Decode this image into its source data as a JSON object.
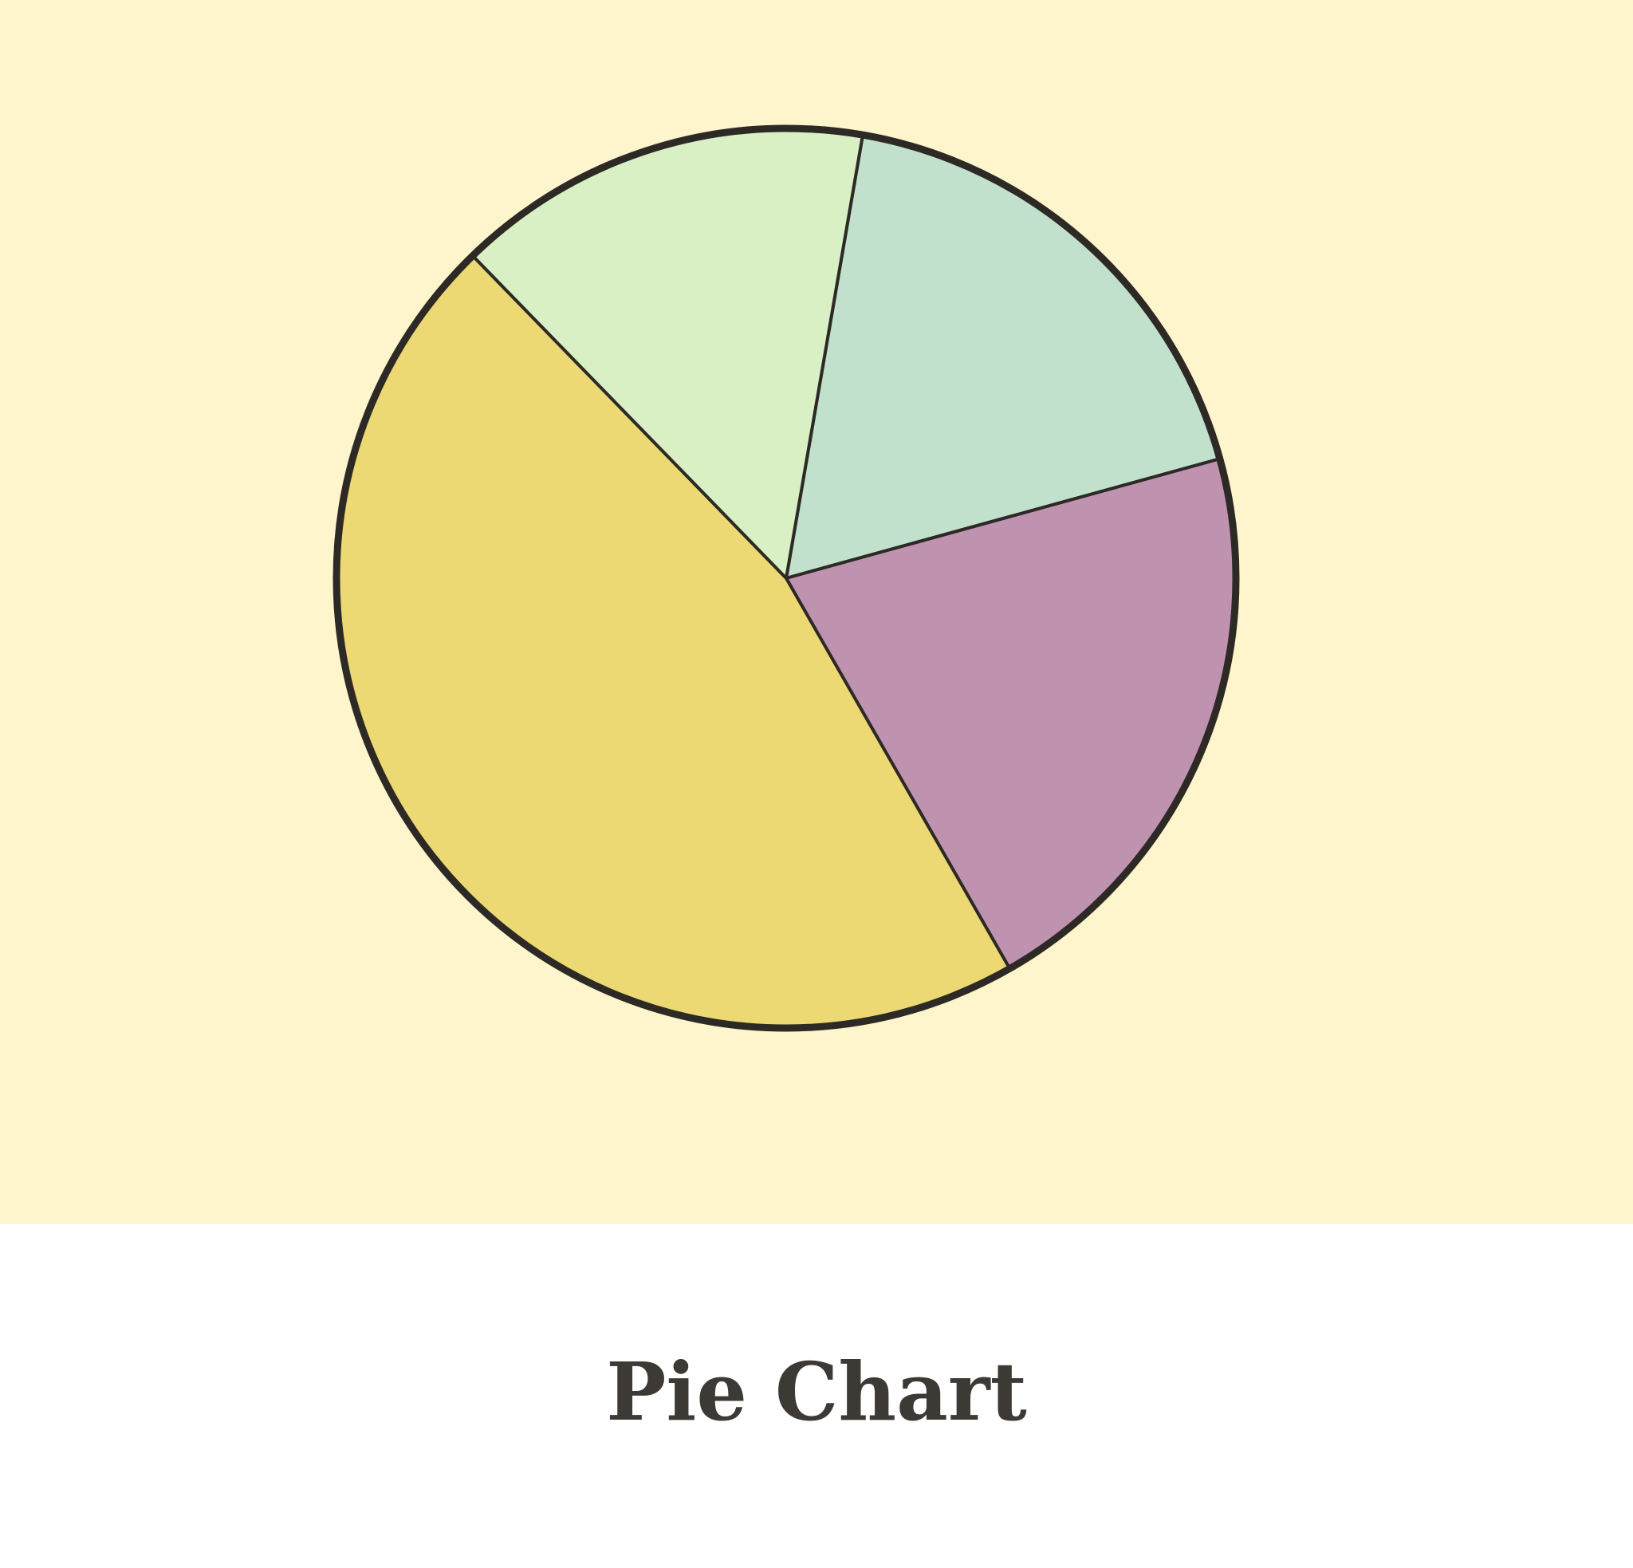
{
  "chart_data": {
    "type": "pie",
    "title": "Pie Chart",
    "values": [
      18,
      21,
      46,
      15
    ],
    "colors": [
      "#c2e1cc",
      "#bf93b0",
      "#ecd973",
      "#d8f0c4"
    ]
  }
}
